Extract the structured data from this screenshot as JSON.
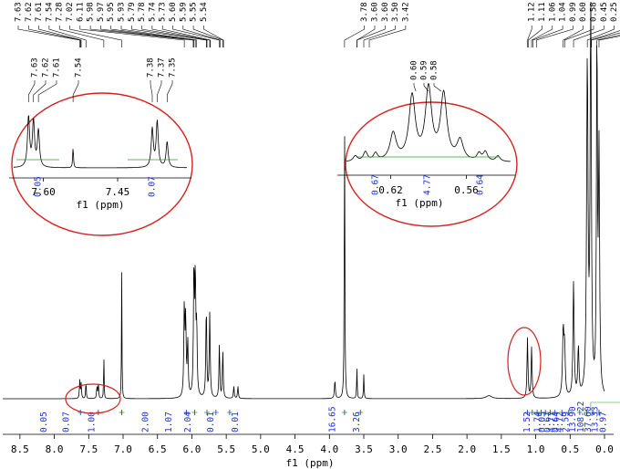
{
  "chart_data": {
    "type": "line",
    "xlabel": "f1 (ppm)",
    "xlim": [
      8.75,
      0.0
    ],
    "x_ticks": [
      "8.5",
      "8.0",
      "7.5",
      "7.0",
      "6.5",
      "6.0",
      "5.5",
      "5.0",
      "4.5",
      "4.0",
      "3.5",
      "3.0",
      "2.5",
      "2.0",
      "1.5",
      "1.0",
      "0.5",
      "0.0"
    ],
    "peak_labels": [
      {
        "ppm": 7.63,
        "label": "7.63"
      },
      {
        "ppm": 7.62,
        "label": "7.62"
      },
      {
        "ppm": 7.61,
        "label": "7.61"
      },
      {
        "ppm": 7.54,
        "label": "7.54"
      },
      {
        "ppm": 7.28,
        "label": "7.28"
      },
      {
        "ppm": 7.02,
        "label": "7.02"
      },
      {
        "ppm": 6.11,
        "label": "6.11"
      },
      {
        "ppm": 5.98,
        "label": "5.98"
      },
      {
        "ppm": 5.97,
        "label": "5.97"
      },
      {
        "ppm": 5.95,
        "label": "5.95"
      },
      {
        "ppm": 5.93,
        "label": "5.93"
      },
      {
        "ppm": 5.79,
        "label": "5.79"
      },
      {
        "ppm": 5.78,
        "label": "5.78"
      },
      {
        "ppm": 5.74,
        "label": "5.74"
      },
      {
        "ppm": 5.73,
        "label": "5.73"
      },
      {
        "ppm": 5.6,
        "label": "5.60"
      },
      {
        "ppm": 5.59,
        "label": "5.59"
      },
      {
        "ppm": 5.55,
        "label": "5.55"
      },
      {
        "ppm": 5.54,
        "label": "5.54"
      },
      {
        "ppm": 3.78,
        "label": "3.78"
      },
      {
        "ppm": 3.6,
        "label": "3.60"
      },
      {
        "ppm": 3.6,
        "label": "3.60"
      },
      {
        "ppm": 3.5,
        "label": "3.50"
      },
      {
        "ppm": 3.42,
        "label": "3.42"
      },
      {
        "ppm": 1.12,
        "label": "1.12"
      },
      {
        "ppm": 1.11,
        "label": "1.11"
      },
      {
        "ppm": 1.06,
        "label": "1.06"
      },
      {
        "ppm": 1.04,
        "label": "1.04"
      },
      {
        "ppm": 0.99,
        "label": "0.99"
      },
      {
        "ppm": 0.6,
        "label": "0.60"
      },
      {
        "ppm": 0.58,
        "label": "0.58"
      },
      {
        "ppm": 0.45,
        "label": "0.45"
      },
      {
        "ppm": 0.25,
        "label": "0.25"
      },
      {
        "ppm": 0.2,
        "label": "0.20"
      },
      {
        "ppm": 0.19,
        "label": "0.19"
      },
      {
        "ppm": 0.11,
        "label": "0.11"
      },
      {
        "ppm": 0.08,
        "label": "0.08"
      }
    ],
    "integrals": [
      {
        "ppm": 7.62,
        "value": "0.05"
      },
      {
        "ppm": 7.36,
        "value": "0.07"
      },
      {
        "ppm": 7.02,
        "value": "1.00"
      },
      {
        "ppm": 6.08,
        "value": "2.00"
      },
      {
        "ppm": 5.96,
        "value": "1.07"
      },
      {
        "ppm": 5.78,
        "value": "2.04"
      },
      {
        "ppm": 5.65,
        "value": "0.01"
      },
      {
        "ppm": 5.45,
        "value": "0.01"
      },
      {
        "ppm": 3.78,
        "value": "16.65"
      },
      {
        "ppm": 3.55,
        "value": "3.26"
      },
      {
        "ppm": 1.12,
        "value": "1.52"
      },
      {
        "ppm": 1.05,
        "value": "1.74"
      },
      {
        "ppm": 0.98,
        "value": "0.05"
      },
      {
        "ppm": 0.92,
        "value": "0.67"
      },
      {
        "ppm": 0.86,
        "value": "4.77"
      },
      {
        "ppm": 0.79,
        "value": "0.64"
      },
      {
        "ppm": 0.72,
        "value": "4.72"
      },
      {
        "ppm": 0.62,
        "value": "2.59"
      },
      {
        "ppm": 0.52,
        "value": "13.90"
      },
      {
        "ppm": 0.36,
        "value": "108.22"
      },
      {
        "ppm": 0.26,
        "value": "37.60"
      },
      {
        "ppm": 0.17,
        "value": "13.33"
      },
      {
        "ppm": 0.08,
        "value": "0.97"
      }
    ],
    "insets": [
      {
        "region": "aromatic",
        "xlim": [
          7.66,
          7.31
        ],
        "x_ticks": [
          "7.60",
          "7.45"
        ],
        "xlabel": "f1 (ppm)",
        "peak_labels": [
          "7.63",
          "7.62",
          "7.61",
          "7.54",
          "7.38",
          "7.37",
          "7.35"
        ],
        "integrals": [
          "0.05",
          "0.07"
        ]
      },
      {
        "region": "aliphatic",
        "xlim": [
          0.655,
          0.525
        ],
        "x_ticks": [
          "0.62",
          "0.56"
        ],
        "xlabel": "f1 (ppm)",
        "peak_labels": [
          "0.60",
          "0.59",
          "0.58"
        ],
        "integrals": [
          "0.67",
          "4.77",
          "0.64"
        ]
      }
    ]
  },
  "colors": {
    "spectrum": "#000000",
    "integral_curve": "#2e9e2e",
    "integral_text": "#1c2fd6",
    "highlight_ellipse": "#d62020"
  }
}
